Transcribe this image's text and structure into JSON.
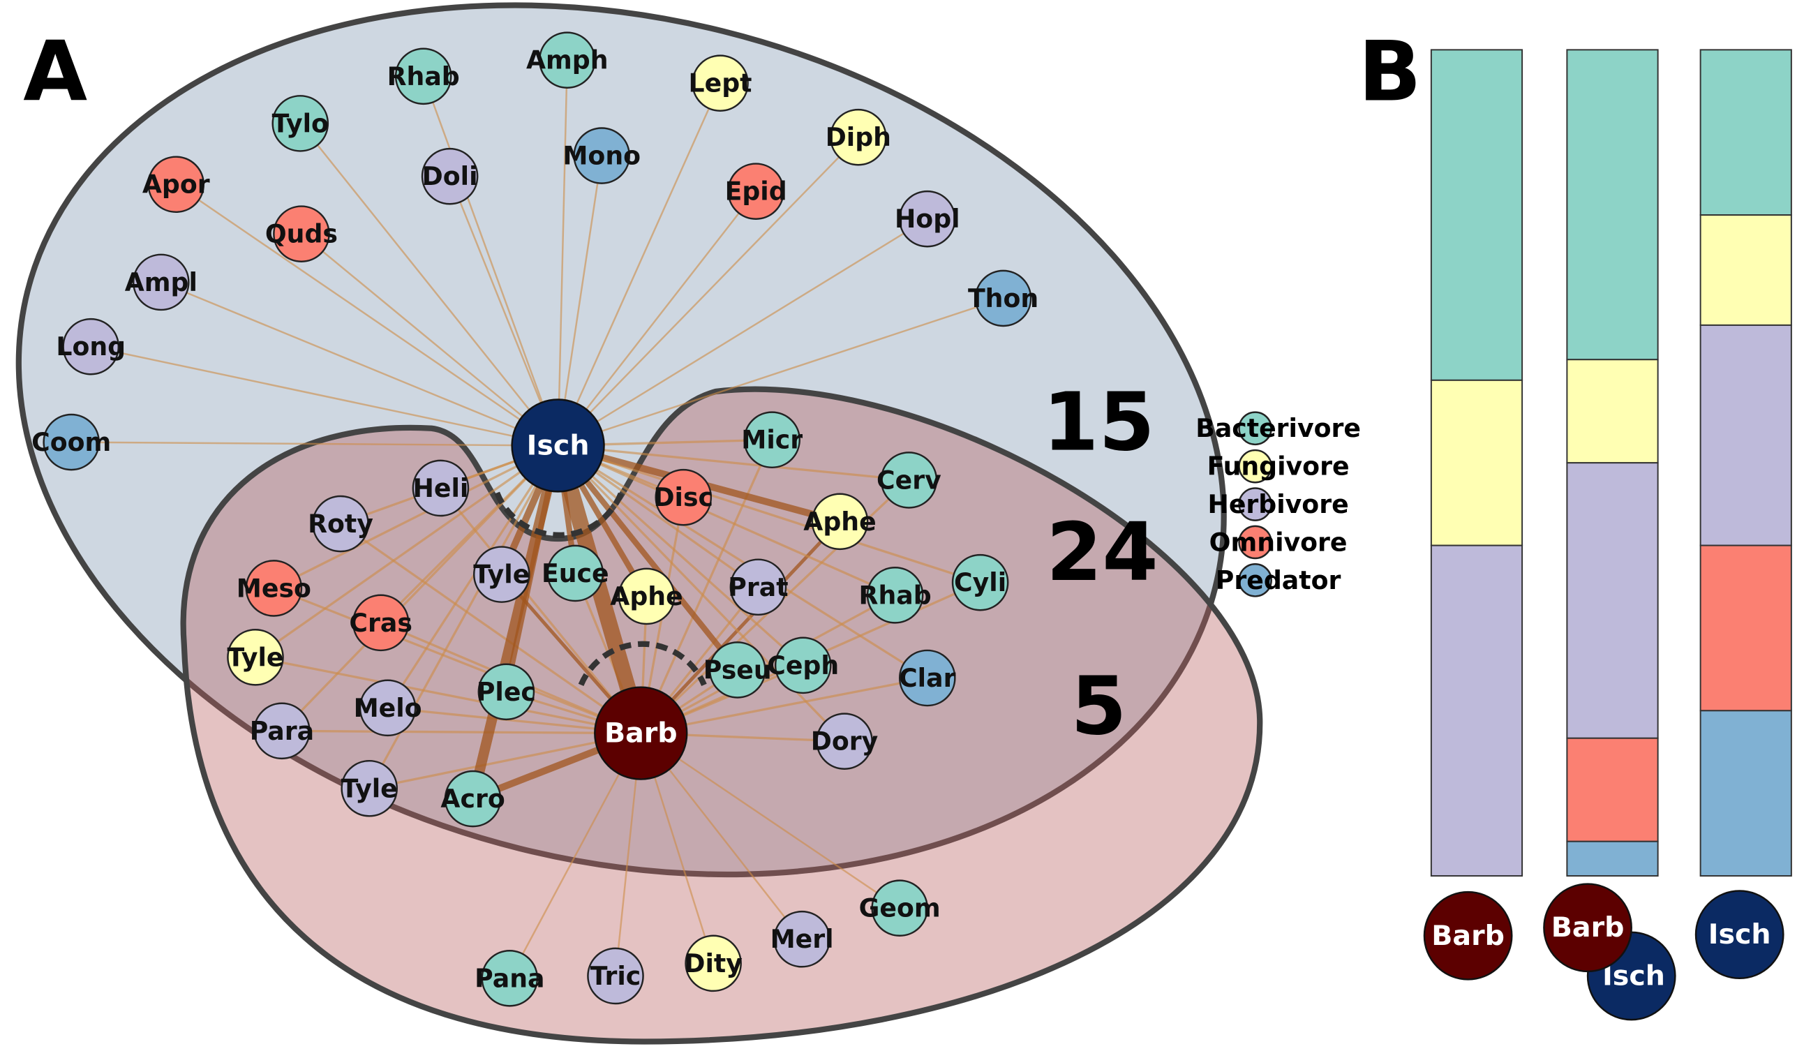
{
  "panel_a": {
    "label": "A",
    "counts": [
      15,
      24,
      5
    ],
    "hubs": [
      {
        "label": "Isch"
      },
      {
        "label": "Barb"
      }
    ],
    "isch_only": [
      {
        "label": "Rhab",
        "guild": "Bacterivore"
      },
      {
        "label": "Amph",
        "guild": "Bacterivore"
      },
      {
        "label": "Lept",
        "guild": "Fungivore"
      },
      {
        "label": "Tylo",
        "guild": "Bacterivore"
      },
      {
        "label": "Mono",
        "guild": "Predator"
      },
      {
        "label": "Diph",
        "guild": "Fungivore"
      },
      {
        "label": "Apor",
        "guild": "Omnivore"
      },
      {
        "label": "Doli",
        "guild": "Herbivore"
      },
      {
        "label": "Epid",
        "guild": "Omnivore"
      },
      {
        "label": "Hopl",
        "guild": "Herbivore"
      },
      {
        "label": "Quds",
        "guild": "Omnivore"
      },
      {
        "label": "Ampl",
        "guild": "Herbivore"
      },
      {
        "label": "Thon",
        "guild": "Predator"
      },
      {
        "label": "Long",
        "guild": "Herbivore"
      },
      {
        "label": "Coom",
        "guild": "Predator"
      }
    ],
    "shared": [
      {
        "label": "Micr",
        "guild": "Bacterivore"
      },
      {
        "label": "Cerv",
        "guild": "Bacterivore"
      },
      {
        "label": "Disc",
        "guild": "Omnivore"
      },
      {
        "label": "Heli",
        "guild": "Herbivore"
      },
      {
        "label": "Aphe",
        "guild": "Fungivore"
      },
      {
        "label": "Roty",
        "guild": "Herbivore"
      },
      {
        "label": "Cyli",
        "guild": "Bacterivore"
      },
      {
        "label": "Tyle",
        "guild": "Herbivore"
      },
      {
        "label": "Euce",
        "guild": "Bacterivore"
      },
      {
        "label": "Aphe",
        "guild": "Fungivore"
      },
      {
        "label": "Prat",
        "guild": "Herbivore"
      },
      {
        "label": "Rhab",
        "guild": "Bacterivore"
      },
      {
        "label": "Meso",
        "guild": "Omnivore"
      },
      {
        "label": "Cras",
        "guild": "Omnivore"
      },
      {
        "label": "Tyle",
        "guild": "Fungivore"
      },
      {
        "label": "Pseu",
        "guild": "Bacterivore"
      },
      {
        "label": "Ceph",
        "guild": "Bacterivore"
      },
      {
        "label": "Clar",
        "guild": "Predator"
      },
      {
        "label": "Plec",
        "guild": "Bacterivore"
      },
      {
        "label": "Melo",
        "guild": "Herbivore"
      },
      {
        "label": "Para",
        "guild": "Herbivore"
      },
      {
        "label": "Dory",
        "guild": "Herbivore"
      },
      {
        "label": "Tyle",
        "guild": "Herbivore"
      },
      {
        "label": "Acro",
        "guild": "Bacterivore"
      }
    ],
    "barb_only": [
      {
        "label": "Geom",
        "guild": "Bacterivore"
      },
      {
        "label": "Merl",
        "guild": "Herbivore"
      },
      {
        "label": "Dity",
        "guild": "Fungivore"
      },
      {
        "label": "Tric",
        "guild": "Herbivore"
      },
      {
        "label": "Pana",
        "guild": "Bacterivore"
      }
    ]
  },
  "legend": [
    {
      "name": "Bacterivore",
      "color": "#8dd3c7"
    },
    {
      "name": "Fungivore",
      "color": "#ffffb3"
    },
    {
      "name": "Herbivore",
      "color": "#bebada"
    },
    {
      "name": "Omnivore",
      "color": "#fb8072"
    },
    {
      "name": "Predator",
      "color": "#80b1d3"
    }
  ],
  "panel_b": {
    "label": "B",
    "bars": [
      {
        "hubs": [
          "Barb"
        ],
        "values": [
          2,
          1,
          2,
          0,
          0
        ]
      },
      {
        "hubs": [
          "Barb",
          "Isch"
        ],
        "values": [
          9,
          3,
          8,
          3,
          1
        ]
      },
      {
        "hubs": [
          "Isch"
        ],
        "values": [
          3,
          2,
          4,
          3,
          3
        ]
      }
    ]
  }
}
